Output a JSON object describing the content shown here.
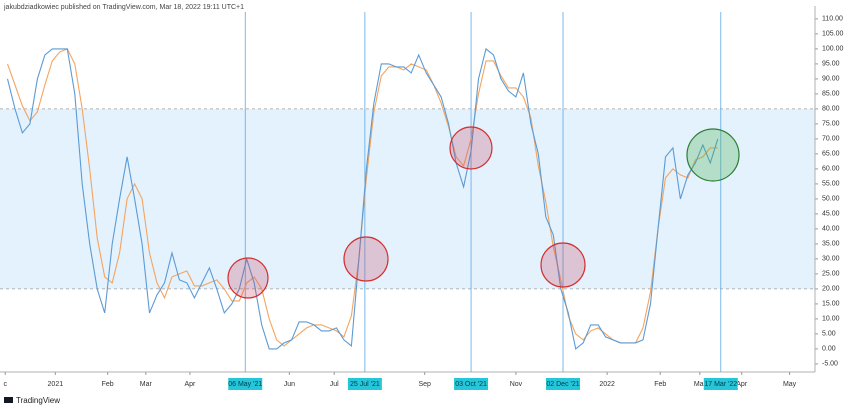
{
  "header": "jakubdziadkowiec published on TradingView.com, Mar 18, 2022 19:11 UTC+1",
  "footer": "TradingView",
  "chart_data": {
    "type": "line",
    "ylim": [
      -7.7,
      112.3
    ],
    "yticks": [
      {
        "value": 110,
        "label": "110.00"
      },
      {
        "value": 105,
        "label": "105.00"
      },
      {
        "value": 100,
        "label": "100.00"
      },
      {
        "value": 95,
        "label": "95.00"
      },
      {
        "value": 90,
        "label": "90.00"
      },
      {
        "value": 85,
        "label": "85.00"
      },
      {
        "value": 80,
        "label": "80.00"
      },
      {
        "value": 75,
        "label": "75.00"
      },
      {
        "value": 70,
        "label": "70.00"
      },
      {
        "value": 65,
        "label": "65.00"
      },
      {
        "value": 60,
        "label": "60.00"
      },
      {
        "value": 55,
        "label": "55.00"
      },
      {
        "value": 50,
        "label": "50.00"
      },
      {
        "value": 45,
        "label": "45.00"
      },
      {
        "value": 40,
        "label": "40.00"
      },
      {
        "value": 35,
        "label": "35.00"
      },
      {
        "value": 30,
        "label": "30.00"
      },
      {
        "value": 25,
        "label": "25.00"
      },
      {
        "value": 20,
        "label": "20.00"
      },
      {
        "value": 15,
        "label": "15.00"
      },
      {
        "value": 10,
        "label": "10.00"
      },
      {
        "value": 5,
        "label": "5.00"
      },
      {
        "value": 0,
        "label": "0.00"
      },
      {
        "value": -5,
        "label": "-5.00"
      }
    ],
    "band": [
      20,
      80
    ],
    "band_color": "#e3f2fd",
    "xlim": [
      -1,
      108
    ],
    "xticks": [
      {
        "value": -0.3,
        "label": "c"
      },
      {
        "value": 6.4,
        "label": "2021"
      },
      {
        "value": 13.4,
        "label": "Feb"
      },
      {
        "value": 18.5,
        "label": "Mar"
      },
      {
        "value": 24.4,
        "label": "Apr"
      },
      {
        "value": 37.7,
        "label": "Jun"
      },
      {
        "value": 43.7,
        "label": "Jul"
      },
      {
        "value": 55.8,
        "label": "Sep"
      },
      {
        "value": 68,
        "label": "Nov"
      },
      {
        "value": 80.2,
        "label": "2022"
      },
      {
        "value": 87.3,
        "label": "Feb"
      },
      {
        "value": 92.6,
        "label": "Mar"
      },
      {
        "value": 98.2,
        "label": "Apr"
      },
      {
        "value": 104.6,
        "label": "May"
      }
    ],
    "date_markers": [
      {
        "value": 31.8,
        "label": "06 May '21"
      },
      {
        "value": 47.8,
        "label": "25 Jul '21"
      },
      {
        "value": 62,
        "label": "03 Oct '21"
      },
      {
        "value": 74.3,
        "label": "02 Dec '21"
      },
      {
        "value": 95.4,
        "label": "17 Mar '22"
      }
    ],
    "series": [
      {
        "color": "#5b9bd5",
        "values": [
          90,
          80,
          72,
          75,
          90,
          98,
          100,
          100,
          100,
          85,
          55,
          35,
          20,
          12,
          35,
          50,
          64,
          50,
          35,
          12,
          18,
          22,
          32,
          23,
          22,
          17,
          22,
          27,
          20,
          12,
          15,
          20,
          30,
          22,
          8,
          0,
          0,
          2,
          3,
          9,
          9,
          8,
          6,
          6,
          7,
          3,
          1,
          30,
          60,
          82,
          95,
          95,
          94,
          94,
          92,
          98,
          92,
          88,
          84,
          75,
          62,
          54,
          66,
          90,
          100,
          98,
          90,
          86,
          84,
          92,
          75,
          65,
          44,
          38,
          20,
          12,
          0,
          2,
          8,
          8,
          4,
          3,
          2,
          2,
          2,
          3,
          15,
          40,
          64,
          67,
          50,
          58,
          62,
          68,
          62,
          70
        ]
      },
      {
        "color": "#f4a460",
        "values": [
          95,
          88,
          81,
          76,
          79,
          88,
          96,
          99,
          100,
          95,
          80,
          60,
          37,
          24,
          22,
          32,
          50,
          55,
          50,
          32,
          22,
          17,
          24,
          25,
          26,
          21,
          21,
          22,
          23,
          20,
          16,
          16,
          22,
          24,
          20,
          10,
          3,
          1,
          3,
          5,
          7,
          8,
          8,
          7,
          6,
          4,
          11,
          30,
          57,
          79,
          91,
          94,
          94,
          93,
          95,
          94,
          93,
          88,
          82,
          74,
          64,
          61,
          70,
          85,
          96,
          96,
          91,
          87,
          87,
          84,
          77,
          61,
          49,
          34,
          23,
          11,
          5,
          3,
          6,
          7,
          5,
          3,
          2,
          2,
          2,
          7,
          19,
          40,
          57,
          60,
          58,
          57,
          63,
          64,
          67,
          67
        ]
      }
    ]
  }
}
